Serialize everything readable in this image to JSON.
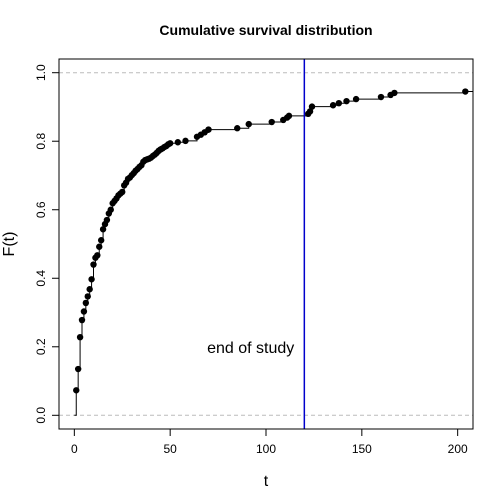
{
  "chart_data": {
    "type": "scatter",
    "title": "Cumulative survival distribution",
    "xlabel": "t",
    "ylabel": "F(t)",
    "xlim": [
      -8,
      208
    ],
    "ylim": [
      -0.04,
      1.04
    ],
    "x_ticks": [
      0,
      50,
      100,
      150,
      200
    ],
    "y_ticks": [
      0.0,
      0.2,
      0.4,
      0.6,
      0.8,
      1.0
    ],
    "x_tick_labels": [
      "0",
      "50",
      "100",
      "150",
      "200"
    ],
    "y_tick_labels": [
      "0.0",
      "0.2",
      "0.4",
      "0.6",
      "0.8",
      "1.0"
    ],
    "reference_lines_y": [
      0,
      1
    ],
    "vertical_line": {
      "x": 120,
      "color": "#0000cc"
    },
    "annotation": {
      "text": "end of study",
      "x": 92,
      "y": 0.2
    },
    "step_start": 0,
    "step_end_x": 208,
    "points": {
      "x": [
        1,
        2,
        3,
        4,
        5,
        6,
        7,
        8,
        9,
        10,
        11,
        12,
        13,
        14,
        15,
        16,
        17,
        18,
        19,
        20,
        21,
        22,
        23,
        24,
        25,
        26,
        27,
        28,
        29,
        30,
        31,
        32,
        33,
        34,
        35,
        36,
        37,
        38,
        39,
        40,
        41,
        42,
        43,
        44,
        45,
        46,
        47,
        48,
        49,
        50,
        54,
        58,
        64,
        66,
        68,
        70,
        85,
        91,
        103,
        109,
        111,
        112,
        122,
        123,
        124,
        135,
        138,
        142,
        147,
        160,
        165,
        167,
        204
      ],
      "y": [
        0.073,
        0.135,
        0.228,
        0.278,
        0.303,
        0.328,
        0.347,
        0.368,
        0.397,
        0.44,
        0.46,
        0.467,
        0.492,
        0.511,
        0.543,
        0.558,
        0.57,
        0.589,
        0.6,
        0.619,
        0.626,
        0.633,
        0.642,
        0.647,
        0.652,
        0.671,
        0.679,
        0.69,
        0.694,
        0.701,
        0.707,
        0.714,
        0.719,
        0.725,
        0.73,
        0.74,
        0.745,
        0.747,
        0.749,
        0.752,
        0.757,
        0.761,
        0.766,
        0.772,
        0.776,
        0.779,
        0.783,
        0.786,
        0.791,
        0.794,
        0.797,
        0.801,
        0.813,
        0.819,
        0.826,
        0.834,
        0.838,
        0.85,
        0.856,
        0.862,
        0.869,
        0.874,
        0.88,
        0.887,
        0.901,
        0.905,
        0.911,
        0.917,
        0.923,
        0.929,
        0.935,
        0.941,
        0.945
      ]
    },
    "grid": false,
    "legend": "none"
  }
}
